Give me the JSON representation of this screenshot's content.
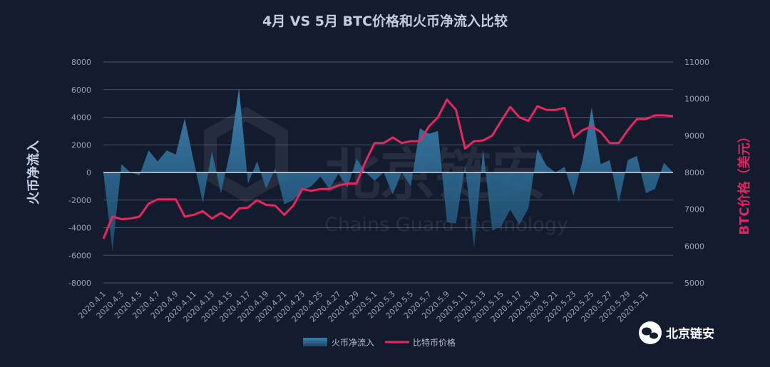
{
  "chart_data": {
    "type": "line",
    "title": "4月 VS 5月 BTC价格和火币净流入比较",
    "y_left_label": "火币净流入",
    "y_right_label": "BTC价格（美元）",
    "y_left_range": [
      -8000,
      8000
    ],
    "y_left_ticks": [
      "8000",
      "6000",
      "4000",
      "2000",
      "0",
      "-2000",
      "-4000",
      "-6000",
      "-8000"
    ],
    "y_right_range": [
      5000,
      11000
    ],
    "y_right_ticks": [
      "11000",
      "10000",
      "9000",
      "8000",
      "7000",
      "6000",
      "5000"
    ],
    "x_tick_labels": [
      "2020.4.1",
      "2020.4.3",
      "2020.4.5",
      "2020.4.7",
      "2020.4.9",
      "2020.4.11",
      "2020.4.13",
      "2020.4.15",
      "2020.4.17",
      "2020.4.19",
      "2020.4.21",
      "2020.4.23",
      "2020.4.25",
      "2020.4.27",
      "2020.4.29",
      "2020.5.1",
      "2020.5.3",
      "2020.5.5",
      "2020.5.7",
      "2020.5.9",
      "2020.5.11",
      "2020.5.13",
      "2020.5.15",
      "2020.5.17",
      "2020.5.19",
      "2020.5.21",
      "2020.5.23",
      "2020.5.25",
      "2020.5.27",
      "2020.5.29",
      "2020.5.31"
    ],
    "grid": true,
    "legend_position": "bottom",
    "series": [
      {
        "name": "火币净流入",
        "kind": "area",
        "color": "#2b6f96",
        "values": [
          0,
          -5700,
          600,
          0,
          -200,
          1600,
          800,
          1600,
          1300,
          3900,
          800,
          -2200,
          1500,
          -1500,
          1500,
          6100,
          -800,
          800,
          -1200,
          300,
          -2300,
          -2000,
          -1300,
          -1000,
          -300,
          -1200,
          -100,
          -1100,
          1000,
          0,
          -600,
          0,
          -1600,
          0,
          -1000,
          3200,
          2800,
          3000,
          -3600,
          -3700,
          500,
          -5500,
          1700,
          -4200,
          -3900,
          -2700,
          -3800,
          -2600,
          1700,
          500,
          0,
          400,
          -1700,
          900,
          4700,
          600,
          900,
          -2200,
          900,
          1200,
          -1500,
          -1200,
          700,
          0
        ]
      },
      {
        "name": "比特币价格",
        "kind": "line",
        "color": "#e8275f",
        "values": [
          6200,
          6800,
          6730,
          6750,
          6800,
          7150,
          7270,
          7270,
          7270,
          6800,
          6850,
          6950,
          6750,
          6900,
          6750,
          7020,
          7050,
          7250,
          7120,
          7100,
          6850,
          7100,
          7550,
          7500,
          7550,
          7550,
          7650,
          7700,
          7700,
          8300,
          8800,
          8800,
          8950,
          8800,
          8850,
          8850,
          9250,
          9500,
          9980,
          9700,
          8650,
          8850,
          8870,
          9000,
          9400,
          9780,
          9500,
          9400,
          9800,
          9700,
          9700,
          9750,
          8950,
          9150,
          9250,
          9100,
          8800,
          8800,
          9150,
          9450,
          9450,
          9550,
          9550,
          9530
        ]
      }
    ]
  },
  "watermark": {
    "name_cn": "北京链安",
    "name_en": "Chains Guard Technology"
  },
  "brand": {
    "label": "北京链安"
  },
  "colors": {
    "background": "#131b2e",
    "gridline": "#4a5164",
    "area": "#2b6f96",
    "line": "#e8275f",
    "right_axis_title": "#e0245e"
  }
}
